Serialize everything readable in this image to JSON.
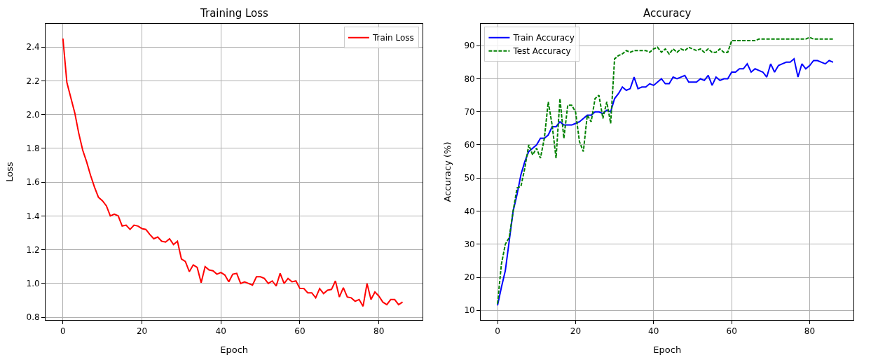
{
  "chart_data": [
    {
      "type": "line",
      "title": "Training Loss",
      "xlabel": "Epoch",
      "ylabel": "Loss",
      "xlim": [
        -4.4,
        91.1
      ],
      "xticks": [
        0,
        20,
        40,
        60,
        80
      ],
      "ylim": [
        0.784,
        2.537
      ],
      "yticks": [
        0.8,
        {
          "value": 1.0,
          "label": "1.0"
        },
        1.2,
        1.4,
        1.6,
        1.8,
        {
          "value": 2.0,
          "label": "2.0"
        },
        2.2,
        2.4
      ],
      "grid": true,
      "legend": "top right",
      "marker": "none",
      "x": [
        0,
        1,
        2,
        3,
        4,
        5,
        6,
        7,
        8,
        9,
        10,
        11,
        12,
        13,
        14,
        15,
        16,
        17,
        18,
        19,
        20,
        21,
        22,
        23,
        24,
        25,
        26,
        27,
        28,
        29,
        30,
        31,
        32,
        33,
        34,
        35,
        36,
        37,
        38,
        39,
        40,
        41,
        42,
        43,
        44,
        45,
        46,
        47,
        48,
        49,
        50,
        51,
        52,
        53,
        54,
        55,
        56,
        57,
        58,
        59,
        60,
        61,
        62,
        63,
        64,
        65,
        66,
        67,
        68,
        69,
        70,
        71,
        72,
        73,
        74,
        75,
        76,
        77,
        78,
        79,
        80,
        81,
        82,
        83,
        84,
        85,
        86
      ],
      "series": [
        {
          "name": "Train Loss",
          "color": "#ff0000",
          "line_style": "solid",
          "values": [
            2.45,
            2.19,
            2.1,
            2.01,
            1.89,
            1.79,
            1.72,
            1.64,
            1.57,
            1.51,
            1.49,
            1.46,
            1.4,
            1.41,
            1.4,
            1.34,
            1.345,
            1.32,
            1.345,
            1.34,
            1.325,
            1.32,
            1.29,
            1.265,
            1.275,
            1.25,
            1.245,
            1.265,
            1.23,
            1.25,
            1.145,
            1.13,
            1.07,
            1.11,
            1.095,
            1.005,
            1.1,
            1.08,
            1.075,
            1.055,
            1.065,
            1.05,
            1.01,
            1.055,
            1.06,
            1.0,
            1.01,
            1.0,
            0.99,
            1.04,
            1.04,
            1.03,
            1.0,
            1.015,
            0.985,
            1.06,
            1.0,
            1.03,
            1.01,
            1.015,
            0.97,
            0.97,
            0.945,
            0.945,
            0.915,
            0.97,
            0.94,
            0.96,
            0.965,
            1.015,
            0.92,
            0.975,
            0.92,
            0.915,
            0.895,
            0.905,
            0.865,
            1.0,
            0.905,
            0.95,
            0.925,
            0.89,
            0.875,
            0.905,
            0.905,
            0.875,
            0.89
          ]
        }
      ]
    },
    {
      "type": "line",
      "title": "Accuracy",
      "xlabel": "Epoch",
      "ylabel": "Accuracy (%)",
      "xlim": [
        -4.3,
        91.3
      ],
      "xticks": [
        0,
        20,
        40,
        60,
        80
      ],
      "ylim": [
        7.1,
        96.6
      ],
      "yticks": [
        10,
        20,
        30,
        40,
        50,
        60,
        70,
        80,
        90
      ],
      "grid": true,
      "legend": "top left",
      "marker": "none",
      "x": [
        0,
        1,
        2,
        3,
        4,
        5,
        6,
        7,
        8,
        9,
        10,
        11,
        12,
        13,
        14,
        15,
        16,
        17,
        18,
        19,
        20,
        21,
        22,
        23,
        24,
        25,
        26,
        27,
        28,
        29,
        30,
        31,
        32,
        33,
        34,
        35,
        36,
        37,
        38,
        39,
        40,
        41,
        42,
        43,
        44,
        45,
        46,
        47,
        48,
        49,
        50,
        51,
        52,
        53,
        54,
        55,
        56,
        57,
        58,
        59,
        60,
        61,
        62,
        63,
        64,
        65,
        66,
        67,
        68,
        69,
        70,
        71,
        72,
        73,
        74,
        75,
        76,
        77,
        78,
        79,
        80,
        81,
        82,
        83,
        84,
        85,
        86
      ],
      "series": [
        {
          "name": "Train Accuracy",
          "color": "#0000ff",
          "line_style": "solid",
          "values": [
            11.5,
            17,
            22,
            31,
            40,
            45,
            51,
            55,
            58,
            59,
            60,
            62,
            62,
            63,
            65.5,
            65.5,
            67,
            66,
            66,
            66,
            66.5,
            67,
            68,
            69,
            69,
            70,
            70,
            69.5,
            70.5,
            70,
            74,
            75.5,
            77.5,
            76.5,
            77,
            80.5,
            77,
            77.5,
            77.5,
            78.5,
            78,
            79,
            80,
            78.5,
            78.5,
            80.5,
            80,
            80.5,
            81,
            79,
            79,
            79,
            80,
            79.5,
            81,
            78,
            80.5,
            79.5,
            80,
            80,
            82,
            82,
            83,
            83,
            84.5,
            82,
            83,
            82.5,
            82,
            80.5,
            84.5,
            82,
            84,
            84.5,
            85,
            85,
            86,
            80.5,
            84.5,
            83,
            84,
            85.5,
            85.5,
            85,
            84.5,
            85.5,
            85
          ]
        },
        {
          "name": "Test Accuracy",
          "color": "#008000",
          "line_style": "dashed",
          "values": [
            12,
            24,
            30,
            32,
            40,
            47,
            47.5,
            53,
            60,
            57,
            59,
            56,
            62,
            73,
            66,
            56,
            74,
            62,
            72,
            72,
            70,
            61,
            58,
            69,
            67,
            74,
            75,
            68,
            73,
            66.5,
            86,
            87,
            87.5,
            88.5,
            88,
            88.5,
            88.5,
            88.5,
            88.5,
            88,
            89,
            89.5,
            88,
            89,
            87.5,
            89,
            88,
            89,
            88.5,
            89.5,
            89,
            88.5,
            89,
            88,
            89,
            88,
            88,
            89,
            88,
            88,
            91.5,
            91.5,
            91.5,
            91.5,
            91.5,
            91.5,
            91.5,
            92,
            92,
            92,
            92,
            92,
            92,
            92,
            92,
            92,
            92,
            92,
            92,
            92,
            92.5,
            92,
            92,
            92,
            92,
            92,
            92
          ]
        }
      ]
    }
  ]
}
